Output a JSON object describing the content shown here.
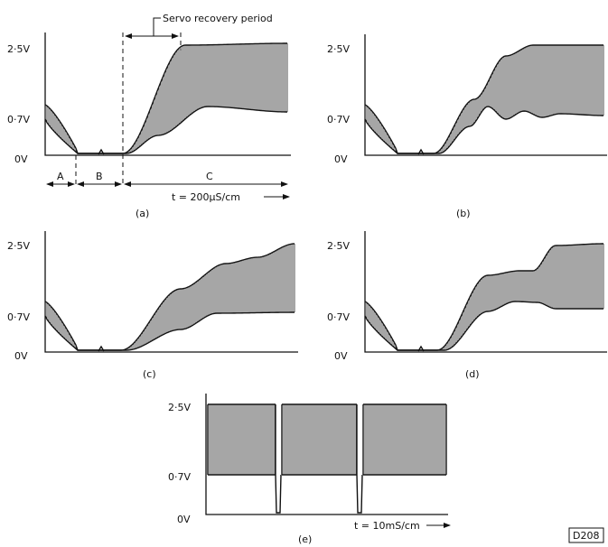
{
  "annotation": {
    "servo_recovery": "Servo recovery period"
  },
  "levels": {
    "high": "2·5V",
    "mid": "0·7V",
    "zero": "0V"
  },
  "time_scales": {
    "main": "t = 200µS/cm",
    "e": "t = 10mS/cm"
  },
  "segments": {
    "a": "A",
    "b": "B",
    "c": "C"
  },
  "panels": [
    {
      "id": "a",
      "caption": "(a)"
    },
    {
      "id": "b",
      "caption": "(b)"
    },
    {
      "id": "c",
      "caption": "(c)"
    },
    {
      "id": "d",
      "caption": "(d)"
    },
    {
      "id": "e",
      "caption": "(e)"
    }
  ],
  "figure_id": "D208"
}
